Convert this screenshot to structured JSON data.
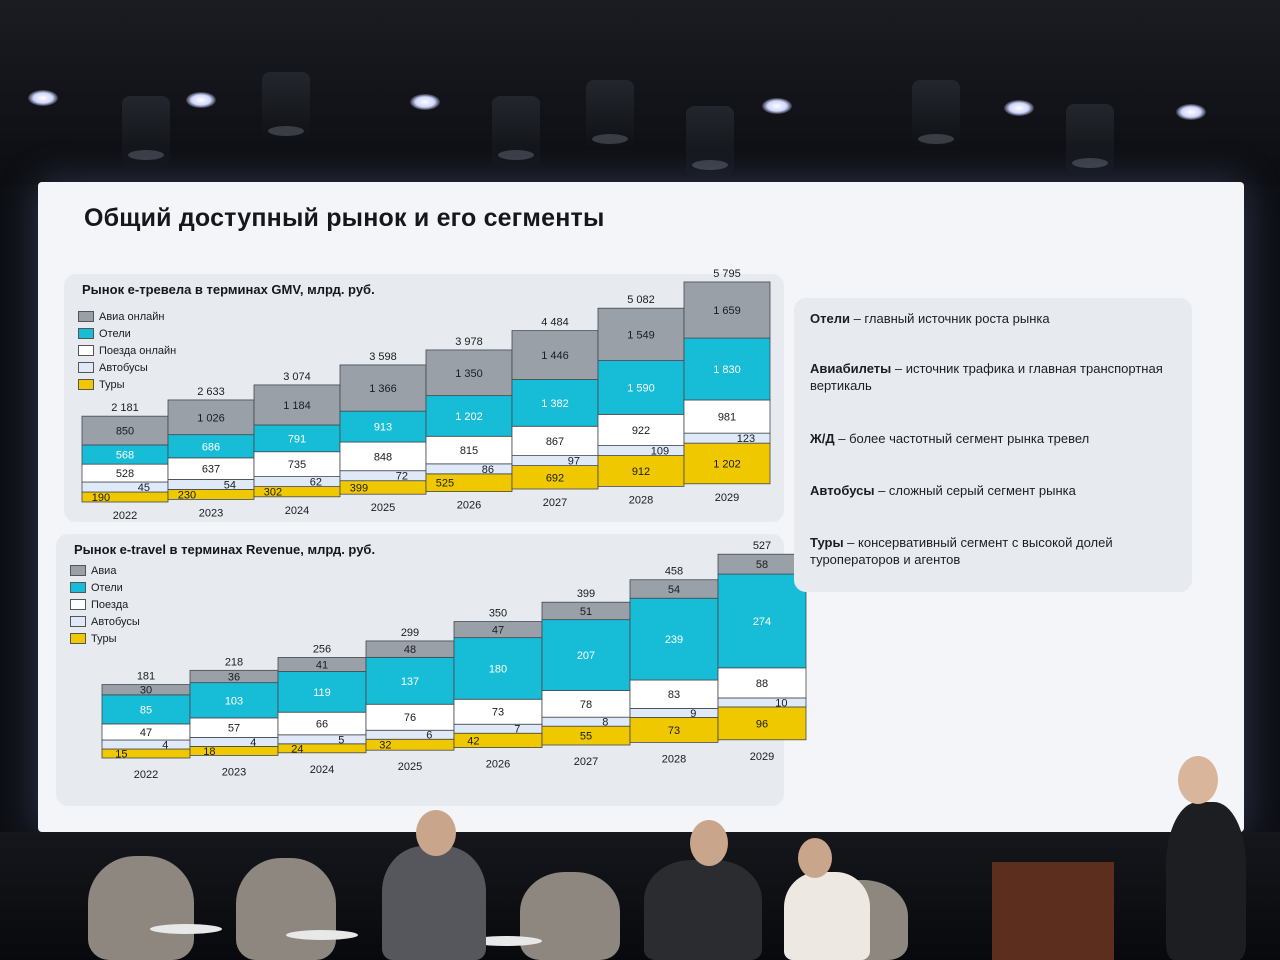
{
  "slide": {
    "title": "Общий доступный рынок и его сегменты"
  },
  "colors": {
    "avia": "#9aa0a8",
    "hotels": "#17bcd6",
    "trains": "#ffffff",
    "buses": "#dfe9f7",
    "tours": "#f0c800"
  },
  "chart_data": [
    {
      "type": "bar",
      "stacked": true,
      "title": "Рынок e-тревела в терминах GMV, млрд. руб.",
      "categories": [
        "2022",
        "2023",
        "2024",
        "2025",
        "2026",
        "2027",
        "2028",
        "2029"
      ],
      "totals": [
        "2 181",
        "2 633",
        "3 074",
        "3 598",
        "3 978",
        "4 484",
        "5 082",
        "5 795"
      ],
      "legend": [
        "Авиа онлайн",
        "Отели",
        "Поезда онлайн",
        "Автобусы",
        "Туры"
      ],
      "legend_placement": "top-left",
      "series": [
        {
          "name": "Туры",
          "values": [
            190,
            230,
            302,
            399,
            525,
            692,
            912,
            1202
          ],
          "labels": [
            "190",
            "230",
            "302",
            "399",
            "525",
            "692",
            "912",
            "1 202"
          ]
        },
        {
          "name": "Автобусы",
          "values": [
            45,
            54,
            62,
            72,
            86,
            97,
            109,
            123
          ],
          "labels": [
            "45",
            "54",
            "62",
            "72",
            "86",
            "97",
            "109",
            "123"
          ]
        },
        {
          "name": "Поезда онлайн",
          "values": [
            528,
            637,
            735,
            848,
            815,
            867,
            922,
            981
          ],
          "labels": [
            "528",
            "637",
            "735",
            "848",
            "815",
            "867",
            "922",
            "981"
          ]
        },
        {
          "name": "Отели",
          "values": [
            568,
            686,
            791,
            913,
            1202,
            1382,
            1590,
            1830
          ],
          "labels": [
            "568",
            "686",
            "791",
            "913",
            "1 202",
            "1 382",
            "1 590",
            "1 830"
          ]
        },
        {
          "name": "Авиа онлайн",
          "values": [
            850,
            1026,
            1184,
            1366,
            1350,
            1446,
            1549,
            1659
          ],
          "labels": [
            "850",
            "1 026",
            "1 184",
            "1 366",
            "1 350",
            "1 446",
            "1 549",
            "1 659"
          ]
        }
      ]
    },
    {
      "type": "bar",
      "stacked": true,
      "title": "Рынок e-travel в терминах Revenue, млрд. руб.",
      "categories": [
        "2022",
        "2023",
        "2024",
        "2025",
        "2026",
        "2027",
        "2028",
        "2029"
      ],
      "totals": [
        "181",
        "218",
        "256",
        "299",
        "350",
        "399",
        "458",
        "527"
      ],
      "legend": [
        "Авиа",
        "Отели",
        "Поезда",
        "Автобусы",
        "Туры"
      ],
      "legend_placement": "top-left",
      "series": [
        {
          "name": "Туры",
          "values": [
            15,
            18,
            24,
            32,
            42,
            55,
            73,
            96
          ],
          "labels": [
            "15",
            "18",
            "24",
            "32",
            "42",
            "55",
            "73",
            "96"
          ]
        },
        {
          "name": "Автобусы",
          "values": [
            4,
            4,
            5,
            6,
            7,
            8,
            9,
            10
          ],
          "labels": [
            "4",
            "4",
            "5",
            "6",
            "7",
            "8",
            "9",
            "10"
          ]
        },
        {
          "name": "Поезда",
          "values": [
            47,
            57,
            66,
            76,
            73,
            78,
            83,
            88
          ],
          "labels": [
            "47",
            "57",
            "66",
            "76",
            "73",
            "78",
            "83",
            "88"
          ]
        },
        {
          "name": "Отели",
          "values": [
            85,
            103,
            119,
            137,
            180,
            207,
            239,
            274
          ],
          "labels": [
            "85",
            "103",
            "119",
            "137",
            "180",
            "207",
            "239",
            "274"
          ]
        },
        {
          "name": "Авиа",
          "values": [
            30,
            36,
            41,
            48,
            47,
            51,
            54,
            58
          ],
          "labels": [
            "30",
            "36",
            "41",
            "48",
            "47",
            "51",
            "54",
            "58"
          ]
        }
      ]
    }
  ],
  "insights": [
    {
      "bold": "Отели",
      "text": " – главный источник роста рынка"
    },
    {
      "bold": "Авиабилеты",
      "text": " – источник трафика и главная транспортная вертикаль"
    },
    {
      "bold": "Ж/Д",
      "text": " – более частотный сегмент рынка тревел"
    },
    {
      "bold": "Автобусы",
      "text": " – сложный серый сегмент рынка"
    },
    {
      "bold": "Туры",
      "text": "  – консервативный сегмент с высокой долей туроператоров и агентов"
    }
  ]
}
